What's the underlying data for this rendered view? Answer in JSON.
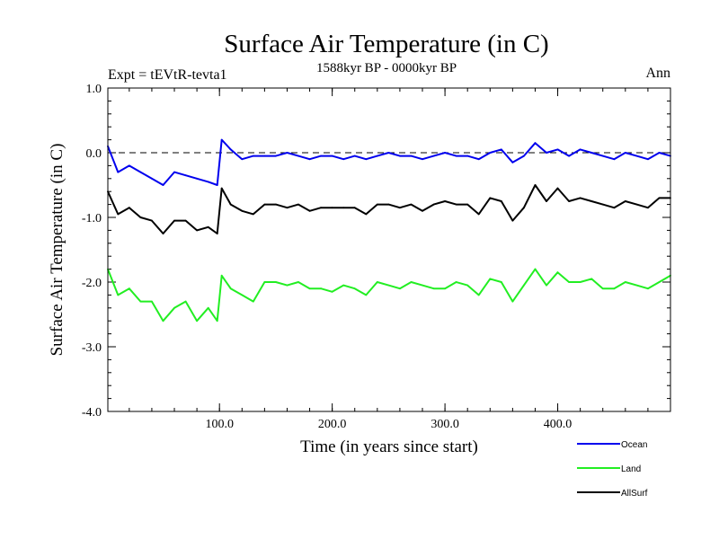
{
  "chart_data": {
    "type": "line",
    "title": "Surface Air Temperature (in C)",
    "subtitle": "1588kyr BP - 0000kyr BP",
    "left_label": "Expt = tEVtR-tevta1",
    "right_label": "Ann",
    "xlabel": "Time (in years since start)",
    "ylabel": "Surface Air Temperature (in C)",
    "xlim": [
      1,
      500
    ],
    "ylim": [
      -4.0,
      1.0
    ],
    "x_ticks": [
      100,
      200,
      300,
      400
    ],
    "x_tick_labels": [
      "100.0",
      "200.0",
      "300.0",
      "400.0"
    ],
    "y_ticks": [
      1.0,
      0.0,
      -1.0,
      -2.0,
      -3.0,
      -4.0
    ],
    "y_tick_labels": [
      "1.0",
      "0.0",
      "-1.0",
      "-2.0",
      "-3.0",
      "-4.0"
    ],
    "reference_line": {
      "y": 0.0,
      "style": "dashed"
    },
    "legend_position": "bottom-right",
    "series": [
      {
        "name": "Ocean",
        "color": "#0000ee",
        "x": [
          1,
          10,
          20,
          30,
          40,
          50,
          60,
          70,
          80,
          90,
          98,
          102,
          110,
          120,
          130,
          140,
          150,
          160,
          170,
          180,
          190,
          200,
          210,
          220,
          230,
          240,
          250,
          260,
          270,
          280,
          290,
          300,
          310,
          320,
          330,
          340,
          350,
          360,
          370,
          380,
          390,
          400,
          410,
          420,
          430,
          440,
          450,
          460,
          470,
          480,
          490,
          500
        ],
        "values": [
          0.1,
          -0.3,
          -0.2,
          -0.3,
          -0.4,
          -0.5,
          -0.3,
          -0.35,
          -0.4,
          -0.45,
          -0.5,
          0.2,
          0.05,
          -0.1,
          -0.05,
          -0.05,
          -0.05,
          0.0,
          -0.05,
          -0.1,
          -0.05,
          -0.05,
          -0.1,
          -0.05,
          -0.1,
          -0.05,
          0.0,
          -0.05,
          -0.05,
          -0.1,
          -0.05,
          0.0,
          -0.05,
          -0.05,
          -0.1,
          0.0,
          0.05,
          -0.15,
          -0.05,
          0.15,
          0.0,
          0.05,
          -0.05,
          0.05,
          0.0,
          -0.05,
          -0.1,
          0.0,
          -0.05,
          -0.1,
          0.0,
          -0.05
        ]
      },
      {
        "name": "Land",
        "color": "#22ee22",
        "x": [
          1,
          10,
          20,
          30,
          40,
          50,
          60,
          70,
          80,
          90,
          98,
          102,
          110,
          120,
          130,
          140,
          150,
          160,
          170,
          180,
          190,
          200,
          210,
          220,
          230,
          240,
          250,
          260,
          270,
          280,
          290,
          300,
          310,
          320,
          330,
          340,
          350,
          360,
          370,
          380,
          390,
          400,
          410,
          420,
          430,
          440,
          450,
          460,
          470,
          480,
          490,
          500
        ],
        "values": [
          -1.8,
          -2.2,
          -2.1,
          -2.3,
          -2.3,
          -2.6,
          -2.4,
          -2.3,
          -2.6,
          -2.4,
          -2.6,
          -1.9,
          -2.1,
          -2.2,
          -2.3,
          -2.0,
          -2.0,
          -2.05,
          -2.0,
          -2.1,
          -2.1,
          -2.15,
          -2.05,
          -2.1,
          -2.2,
          -2.0,
          -2.05,
          -2.1,
          -2.0,
          -2.05,
          -2.1,
          -2.1,
          -2.0,
          -2.05,
          -2.2,
          -1.95,
          -2.0,
          -2.3,
          -2.05,
          -1.8,
          -2.05,
          -1.85,
          -2.0,
          -2.0,
          -1.95,
          -2.1,
          -2.1,
          -2.0,
          -2.05,
          -2.1,
          -2.0,
          -1.9
        ]
      },
      {
        "name": "AllSurf",
        "color": "#000000",
        "x": [
          1,
          10,
          20,
          30,
          40,
          50,
          60,
          70,
          80,
          90,
          98,
          102,
          110,
          120,
          130,
          140,
          150,
          160,
          170,
          180,
          190,
          200,
          210,
          220,
          230,
          240,
          250,
          260,
          270,
          280,
          290,
          300,
          310,
          320,
          330,
          340,
          350,
          360,
          370,
          380,
          390,
          400,
          410,
          420,
          430,
          440,
          450,
          460,
          470,
          480,
          490,
          500
        ],
        "values": [
          -0.6,
          -0.95,
          -0.85,
          -1.0,
          -1.05,
          -1.25,
          -1.05,
          -1.05,
          -1.2,
          -1.15,
          -1.25,
          -0.55,
          -0.8,
          -0.9,
          -0.95,
          -0.8,
          -0.8,
          -0.85,
          -0.8,
          -0.9,
          -0.85,
          -0.85,
          -0.85,
          -0.85,
          -0.95,
          -0.8,
          -0.8,
          -0.85,
          -0.8,
          -0.9,
          -0.8,
          -0.75,
          -0.8,
          -0.8,
          -0.95,
          -0.7,
          -0.75,
          -1.05,
          -0.85,
          -0.5,
          -0.75,
          -0.55,
          -0.75,
          -0.7,
          -0.75,
          -0.8,
          -0.85,
          -0.75,
          -0.8,
          -0.85,
          -0.7,
          -0.7
        ]
      }
    ]
  }
}
